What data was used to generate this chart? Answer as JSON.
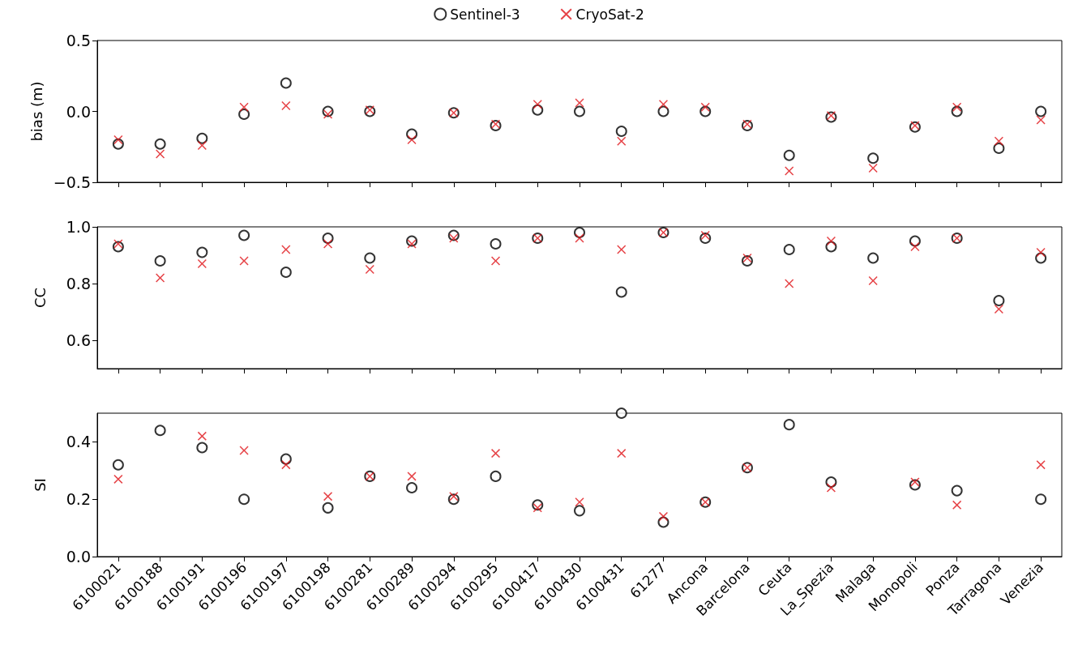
{
  "chart_data": [
    {
      "type": "scatter",
      "ylabel": "bias (m)",
      "ylim": [
        -0.5,
        0.5
      ],
      "yticks": [
        {
          "value": -0.5,
          "label": "−0.5"
        },
        {
          "value": 0,
          "label": "0.0"
        },
        0.5
      ],
      "tick_labels": "y",
      "legend": "top",
      "grid": false,
      "series": [
        {
          "name": "Sentinel-3",
          "color": "#000000",
          "marker": "circle",
          "values": [
            -0.23,
            -0.23,
            -0.19,
            -0.02,
            0.2,
            0.0,
            0.0,
            -0.16,
            -0.01,
            -0.1,
            0.01,
            0.0,
            -0.14,
            0.0,
            0.0,
            -0.1,
            -0.31,
            -0.04,
            -0.33,
            -0.11,
            0.0,
            -0.26,
            0.0
          ]
        },
        {
          "name": "CryoSat-2",
          "color": "#e0151a",
          "marker": "cross",
          "values": [
            -0.2,
            -0.3,
            -0.24,
            0.03,
            0.04,
            -0.02,
            0.01,
            -0.2,
            -0.01,
            -0.09,
            0.05,
            0.06,
            -0.21,
            0.05,
            0.03,
            -0.09,
            -0.42,
            -0.03,
            -0.4,
            -0.1,
            0.03,
            -0.21,
            -0.06
          ]
        }
      ]
    },
    {
      "type": "scatter",
      "ylabel": "CC",
      "ylim": [
        0.5,
        1.0
      ],
      "yticks": [
        0.6,
        0.8,
        {
          "value": 1,
          "label": "1.0"
        }
      ],
      "tick_labels": "y",
      "grid": false,
      "series": [
        {
          "color": "#000000",
          "marker": "circle",
          "values": [
            0.93,
            0.88,
            0.91,
            0.97,
            0.84,
            0.96,
            0.89,
            0.95,
            0.97,
            0.94,
            0.96,
            0.98,
            0.77,
            0.98,
            0.96,
            0.88,
            0.92,
            0.93,
            0.89,
            0.95,
            0.96,
            0.74,
            0.89
          ]
        },
        {
          "color": "#e0151a",
          "marker": "cross",
          "values": [
            0.94,
            0.82,
            0.87,
            0.88,
            0.92,
            0.94,
            0.85,
            0.94,
            0.96,
            0.88,
            0.96,
            0.96,
            0.92,
            0.98,
            0.97,
            0.89,
            0.8,
            0.95,
            0.81,
            0.93,
            0.96,
            0.71,
            0.91
          ]
        }
      ]
    },
    {
      "type": "scatter",
      "ylabel": "SI",
      "categories": [
        "6100021",
        "6100188",
        "6100191",
        "6100196",
        "6100197",
        "6100198",
        "6100281",
        "6100289",
        "6100294",
        "6100295",
        "6100417",
        "6100430",
        "6100431",
        "61277",
        "Ancona",
        "Barcelona",
        "Ceuta",
        "La_Spezia",
        "Malaga",
        "Monopoli",
        "Ponza",
        "Tarragona",
        "Venezia"
      ],
      "ylim": [
        0,
        0.5
      ],
      "yticks": [
        {
          "value": 0,
          "label": "0.0"
        },
        0.2,
        0.4
      ],
      "grid": false,
      "series": [
        {
          "color": "#000000",
          "marker": "circle",
          "values": [
            0.32,
            0.44,
            0.38,
            0.2,
            0.34,
            0.17,
            0.28,
            0.24,
            0.2,
            0.28,
            0.18,
            0.16,
            0.5,
            0.12,
            0.19,
            0.31,
            0.46,
            0.26,
            null,
            0.25,
            0.23,
            null,
            0.2
          ]
        },
        {
          "color": "#e0151a",
          "marker": "cross",
          "values": [
            0.27,
            null,
            0.42,
            0.37,
            0.32,
            0.21,
            0.28,
            0.28,
            0.21,
            0.36,
            0.17,
            0.19,
            0.36,
            0.14,
            0.19,
            0.31,
            null,
            0.24,
            null,
            0.26,
            0.18,
            null,
            0.32
          ]
        }
      ]
    }
  ]
}
